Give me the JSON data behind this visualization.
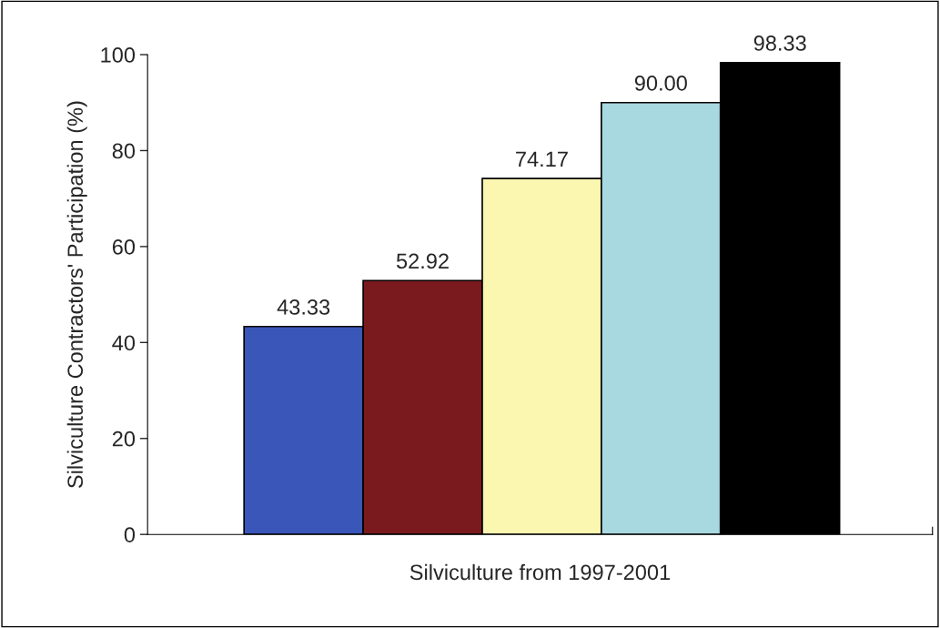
{
  "chart_data": {
    "type": "bar",
    "categories": [
      null,
      null,
      null,
      null,
      null
    ],
    "values": [
      43.33,
      52.92,
      74.17,
      90.0,
      98.33
    ],
    "colors": [
      "#3a56b8",
      "#7a1a1e",
      "#fbf6b0",
      "#a8d8e0",
      "#000000"
    ],
    "value_labels": [
      "43.33",
      "52.92",
      "74.17",
      "90.00",
      "98.33"
    ],
    "xlabel": "Silviculture from 1997-2001",
    "ylabel": "Silviculture Contractors' Participation (%)",
    "ylim": [
      0,
      100
    ],
    "yticks": [
      0,
      20,
      40,
      60,
      80,
      100
    ],
    "grid": false,
    "legend": false
  }
}
